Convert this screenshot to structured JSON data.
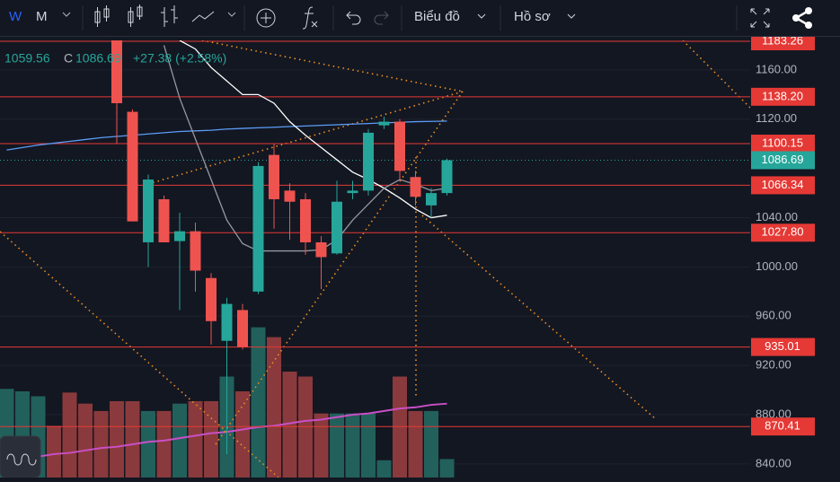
{
  "toolbar": {
    "intervals": [
      "W",
      "M"
    ],
    "menus": [
      "Biểu đồ",
      "Hồ sơ"
    ]
  },
  "chart_data": {
    "type": "candlestick",
    "legend": {
      "low": "1059.56",
      "close_label": "C",
      "close": "1086.69",
      "change": "+27.38 (+2.58%)"
    },
    "categories": [
      null,
      null,
      null,
      null,
      null,
      null,
      null,
      null,
      null,
      null,
      null,
      null,
      null,
      null,
      null,
      null,
      null,
      null,
      null,
      null,
      null,
      null,
      null,
      null,
      null,
      null,
      null,
      null,
      null
    ],
    "open": [
      null,
      null,
      null,
      null,
      null,
      null,
      null,
      1190,
      1126,
      1020,
      1055,
      1021,
      1029,
      991,
      940,
      965,
      980,
      1091,
      1062,
      1055,
      1020,
      1011,
      1060,
      1062,
      1115,
      1118,
      1073,
      1050,
      1060
    ],
    "high": [
      null,
      null,
      null,
      null,
      null,
      null,
      null,
      1200,
      1128,
      1075,
      1058,
      1044,
      1036,
      995,
      975,
      970,
      1085,
      1100,
      1068,
      1060,
      1025,
      1070,
      1070,
      1112,
      1122,
      1120,
      1078,
      1064,
      1088
    ],
    "low": [
      null,
      null,
      null,
      null,
      null,
      null,
      null,
      1100,
      1037,
      1000,
      1020,
      965,
      980,
      937,
      848,
      933,
      978,
      1031,
      1022,
      1010,
      982,
      1010,
      1055,
      1058,
      1112,
      1070,
      1050,
      1040,
      1058
    ],
    "close": [
      null,
      null,
      null,
      null,
      null,
      null,
      null,
      1133,
      1037,
      1071,
      1020,
      1029,
      997,
      956,
      970,
      935,
      1082,
      1055,
      1053,
      1020,
      1008,
      1053,
      1062,
      1109,
      1118,
      1078,
      1057,
      1060,
      1086.69
    ],
    "up_color": "#26a69a",
    "down_color": "#ef5350",
    "volume": [
      72,
      70,
      66,
      42,
      69,
      60,
      54,
      62,
      62,
      54,
      54,
      60,
      62,
      62,
      82,
      70,
      122,
      114,
      86,
      82,
      52,
      52,
      52,
      52,
      14,
      82,
      54,
      54,
      15
    ],
    "volume_colors": [
      "#22605c",
      "#22605c",
      "#22605c",
      "#8a3a3c",
      "#8a3a3c",
      "#8a3a3c",
      "#8a3a3c",
      "#8a3a3c",
      "#8a3a3c",
      "#22605c",
      "#8a3a3c",
      "#22605c",
      "#8a3a3c",
      "#8a3a3c",
      "#22605c",
      "#8a3a3c",
      "#22605c",
      "#8a3a3c",
      "#8a3a3c",
      "#8a3a3c",
      "#8a3a3c",
      "#22605c",
      "#22605c",
      "#22605c",
      "#22605c",
      "#8a3a3c",
      "#8a3a3c",
      "#22605c",
      "#22605c"
    ],
    "volume_lim": [
      0,
      355
    ],
    "series": [
      {
        "color": "#5b9cf6",
        "values": [
          1095,
          1097,
          1099,
          1100.5,
          1102,
          1103.5,
          1105,
          1106,
          1107,
          1108,
          1109,
          1110,
          1110.5,
          1111,
          1112,
          1112.5,
          1113,
          1113.5,
          1114,
          1114.5,
          1115,
          1115.5,
          1116,
          1116.5,
          1117,
          1117.5,
          1118,
          1118.2,
          1118.5
        ]
      },
      {
        "color": "#ffffff",
        "values": [
          null,
          null,
          null,
          null,
          null,
          null,
          null,
          null,
          null,
          null,
          null,
          1184,
          1177,
          1162,
          1151,
          1140,
          1140,
          1133,
          1118,
          1107,
          1097,
          1087,
          1077,
          1071,
          1064,
          1056,
          1047,
          1040,
          1042
        ]
      },
      {
        "color": "#9598a1",
        "values": [
          null,
          null,
          null,
          null,
          null,
          null,
          null,
          null,
          null,
          null,
          1180,
          1137,
          1104,
          1071,
          1038,
          1019,
          1013,
          1013,
          1013,
          1013,
          1014,
          1022,
          1038,
          1051,
          1064,
          1071,
          1067,
          1062,
          1064
        ]
      }
    ],
    "volume_ma": {
      "color": "#c94fc6",
      "values": [
        null,
        null,
        17,
        19,
        20,
        22,
        24,
        25,
        27,
        29,
        30,
        32,
        34,
        36,
        37,
        39,
        41,
        42,
        44,
        46,
        47,
        49,
        51,
        52,
        54,
        56,
        57,
        59,
        60
      ]
    },
    "levels": [
      {
        "value": 1183.26,
        "label": "1183.26"
      },
      {
        "value": 1138.2,
        "label": "1138.20"
      },
      {
        "value": 1100.15,
        "label": "1100.15"
      },
      {
        "value": 1066.34,
        "label": "1066.34"
      },
      {
        "value": 1027.8,
        "label": "1027.80"
      },
      {
        "value": 935.01,
        "label": "935.01"
      },
      {
        "value": 870.41,
        "label": "870.41"
      }
    ],
    "level_color": "#e53935",
    "last_price": {
      "value": 1086.69,
      "label": "1086.69",
      "color": "#26a69a"
    },
    "ylim": [
      829,
      1184
    ],
    "yticks": [
      {
        "value": 840,
        "label": "840.00"
      },
      {
        "value": 880,
        "label": "880.00"
      },
      {
        "value": 920,
        "label": "920.00"
      },
      {
        "value": 960,
        "label": "960.00"
      },
      {
        "value": 1000,
        "label": "1000.00"
      },
      {
        "value": 1040,
        "label": "1040.00"
      },
      {
        "value": 1120,
        "label": "1120.00"
      },
      {
        "value": 1160,
        "label": "1160.00"
      }
    ],
    "grid": true
  }
}
